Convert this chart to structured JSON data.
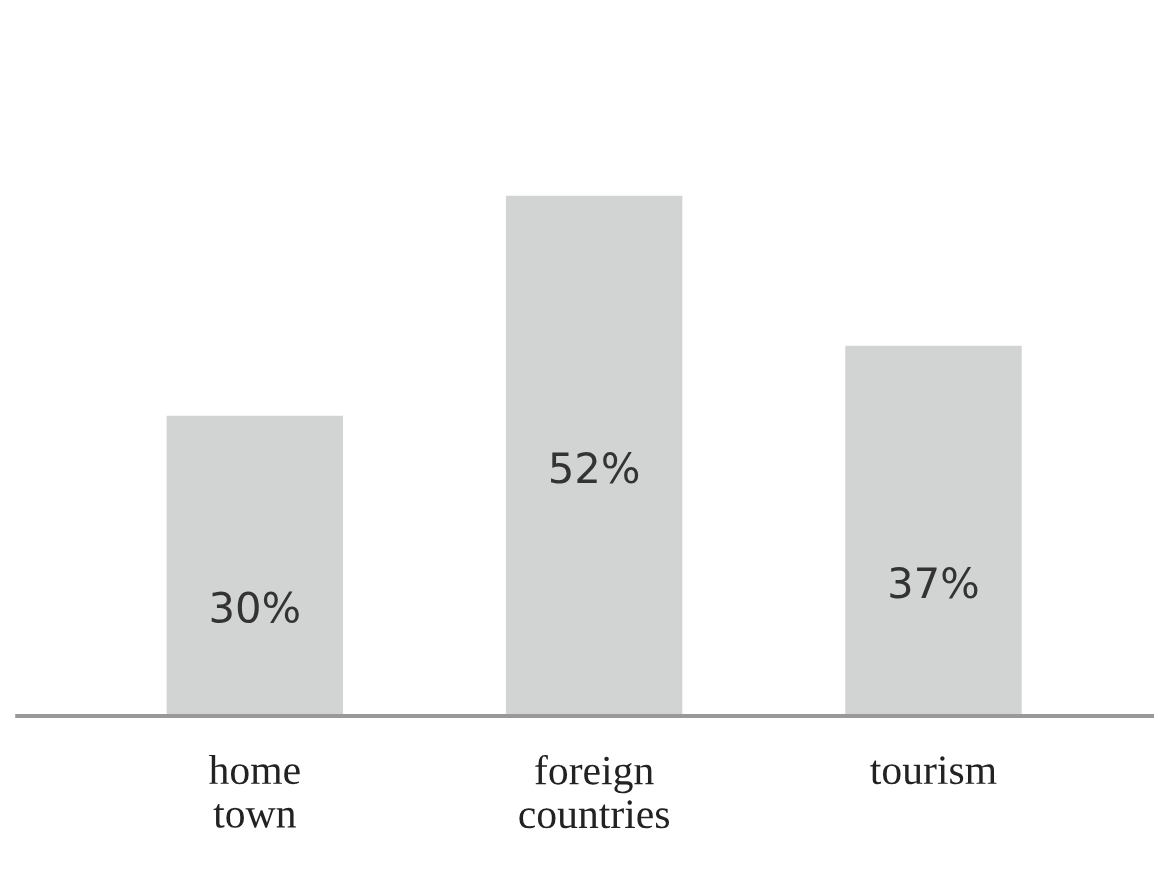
{
  "chart_data": {
    "type": "bar",
    "categories": [
      "home\ntown",
      "foreign\ncountries",
      "tourism"
    ],
    "values": [
      30,
      52,
      37
    ],
    "value_labels": [
      "30%",
      "52%",
      "37%"
    ],
    "color": "#d2d3d3",
    "grid": false,
    "legend": false
  }
}
